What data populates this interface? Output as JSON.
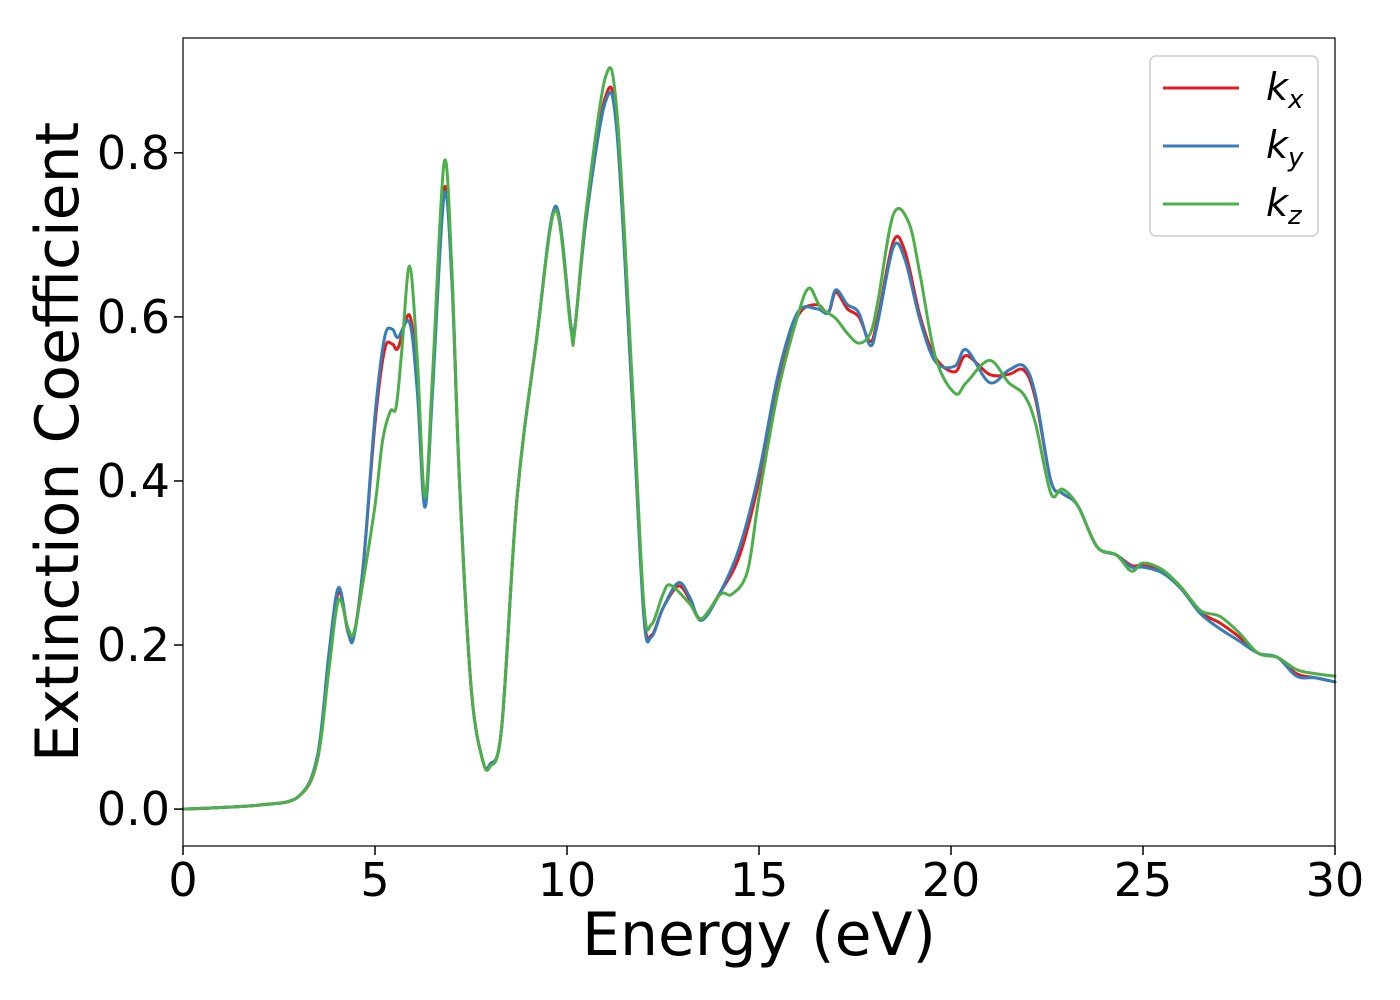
{
  "chart_data": {
    "type": "line",
    "xlabel": "Energy (eV)",
    "ylabel": "Extinction Coefficient",
    "xlim": [
      0,
      30
    ],
    "ylim": [
      -0.045,
      0.94
    ],
    "xticks": [
      0,
      5,
      10,
      15,
      20,
      25,
      30
    ],
    "xtick_labels": [
      "0",
      "5",
      "10",
      "15",
      "20",
      "25",
      "30"
    ],
    "yticks": [
      0.0,
      0.2,
      0.4,
      0.6,
      0.8
    ],
    "ytick_labels": [
      "0.0",
      "0.2",
      "0.4",
      "0.6",
      "0.8"
    ],
    "grid": false,
    "legend_position": "top-right",
    "series": [
      {
        "name": "k_x",
        "legend_base": "k",
        "legend_sub": "x",
        "color": "#e41a1c",
        "points": [
          [
            0,
            0
          ],
          [
            1,
            0.002
          ],
          [
            2,
            0.005
          ],
          [
            3,
            0.015
          ],
          [
            3.5,
            0.06
          ],
          [
            3.8,
            0.18
          ],
          [
            4.05,
            0.265
          ],
          [
            4.3,
            0.215
          ],
          [
            4.45,
            0.212
          ],
          [
            4.7,
            0.3
          ],
          [
            5,
            0.47
          ],
          [
            5.25,
            0.56
          ],
          [
            5.45,
            0.567
          ],
          [
            5.6,
            0.562
          ],
          [
            5.9,
            0.602
          ],
          [
            6.1,
            0.52
          ],
          [
            6.3,
            0.37
          ],
          [
            6.5,
            0.52
          ],
          [
            6.8,
            0.755
          ],
          [
            7,
            0.65
          ],
          [
            7.2,
            0.4
          ],
          [
            7.5,
            0.15
          ],
          [
            7.8,
            0.06
          ],
          [
            8,
            0.055
          ],
          [
            8.3,
            0.1
          ],
          [
            8.7,
            0.38
          ],
          [
            9.2,
            0.57
          ],
          [
            9.7,
            0.732
          ],
          [
            10.1,
            0.59
          ],
          [
            10.2,
            0.585
          ],
          [
            10.5,
            0.72
          ],
          [
            11,
            0.868
          ],
          [
            11.3,
            0.83
          ],
          [
            11.7,
            0.5
          ],
          [
            12,
            0.24
          ],
          [
            12.2,
            0.212
          ],
          [
            12.5,
            0.245
          ],
          [
            12.9,
            0.272
          ],
          [
            13.2,
            0.255
          ],
          [
            13.5,
            0.232
          ],
          [
            14,
            0.265
          ],
          [
            14.5,
            0.31
          ],
          [
            15,
            0.4
          ],
          [
            15.5,
            0.52
          ],
          [
            16,
            0.6
          ],
          [
            16.5,
            0.615
          ],
          [
            16.8,
            0.605
          ],
          [
            17,
            0.63
          ],
          [
            17.3,
            0.61
          ],
          [
            17.6,
            0.6
          ],
          [
            17.9,
            0.57
          ],
          [
            18.1,
            0.6
          ],
          [
            18.5,
            0.692
          ],
          [
            18.8,
            0.68
          ],
          [
            19.2,
            0.6
          ],
          [
            19.6,
            0.55
          ],
          [
            20.1,
            0.533
          ],
          [
            20.4,
            0.553
          ],
          [
            21,
            0.53
          ],
          [
            21.5,
            0.53
          ],
          [
            21.9,
            0.535
          ],
          [
            22.2,
            0.5
          ],
          [
            22.6,
            0.4
          ],
          [
            22.9,
            0.385
          ],
          [
            23.3,
            0.37
          ],
          [
            23.8,
            0.32
          ],
          [
            24.3,
            0.31
          ],
          [
            24.7,
            0.297
          ],
          [
            25,
            0.297
          ],
          [
            25.5,
            0.29
          ],
          [
            26,
            0.27
          ],
          [
            26.5,
            0.24
          ],
          [
            27,
            0.227
          ],
          [
            27.5,
            0.21
          ],
          [
            28,
            0.19
          ],
          [
            28.5,
            0.185
          ],
          [
            29,
            0.165
          ],
          [
            29.5,
            0.16
          ],
          [
            30,
            0.155
          ]
        ]
      },
      {
        "name": "k_y",
        "legend_base": "k",
        "legend_sub": "y",
        "color": "#377eb8",
        "points": [
          [
            0,
            0
          ],
          [
            1,
            0.002
          ],
          [
            2,
            0.005
          ],
          [
            3,
            0.015
          ],
          [
            3.5,
            0.065
          ],
          [
            3.8,
            0.19
          ],
          [
            4.05,
            0.27
          ],
          [
            4.3,
            0.215
          ],
          [
            4.45,
            0.21
          ],
          [
            4.7,
            0.3
          ],
          [
            5,
            0.48
          ],
          [
            5.25,
            0.575
          ],
          [
            5.45,
            0.585
          ],
          [
            5.6,
            0.575
          ],
          [
            5.9,
            0.593
          ],
          [
            6.1,
            0.51
          ],
          [
            6.3,
            0.368
          ],
          [
            6.5,
            0.51
          ],
          [
            6.8,
            0.748
          ],
          [
            7,
            0.645
          ],
          [
            7.2,
            0.4
          ],
          [
            7.5,
            0.15
          ],
          [
            7.8,
            0.06
          ],
          [
            8,
            0.055
          ],
          [
            8.3,
            0.1
          ],
          [
            8.7,
            0.38
          ],
          [
            9.2,
            0.57
          ],
          [
            9.7,
            0.735
          ],
          [
            10.1,
            0.59
          ],
          [
            10.2,
            0.585
          ],
          [
            10.5,
            0.72
          ],
          [
            11,
            0.862
          ],
          [
            11.3,
            0.825
          ],
          [
            11.7,
            0.5
          ],
          [
            12,
            0.235
          ],
          [
            12.2,
            0.21
          ],
          [
            12.5,
            0.245
          ],
          [
            12.9,
            0.276
          ],
          [
            13.2,
            0.258
          ],
          [
            13.5,
            0.23
          ],
          [
            14,
            0.265
          ],
          [
            14.5,
            0.32
          ],
          [
            15,
            0.41
          ],
          [
            15.5,
            0.53
          ],
          [
            16,
            0.605
          ],
          [
            16.5,
            0.61
          ],
          [
            16.8,
            0.605
          ],
          [
            17,
            0.633
          ],
          [
            17.3,
            0.615
          ],
          [
            17.6,
            0.605
          ],
          [
            17.9,
            0.565
          ],
          [
            18.1,
            0.595
          ],
          [
            18.5,
            0.685
          ],
          [
            18.8,
            0.67
          ],
          [
            19.2,
            0.595
          ],
          [
            19.6,
            0.545
          ],
          [
            20.1,
            0.54
          ],
          [
            20.4,
            0.56
          ],
          [
            21,
            0.52
          ],
          [
            21.5,
            0.535
          ],
          [
            21.9,
            0.54
          ],
          [
            22.2,
            0.505
          ],
          [
            22.6,
            0.4
          ],
          [
            22.9,
            0.385
          ],
          [
            23.3,
            0.37
          ],
          [
            23.8,
            0.32
          ],
          [
            24.3,
            0.31
          ],
          [
            24.7,
            0.295
          ],
          [
            25,
            0.295
          ],
          [
            25.5,
            0.288
          ],
          [
            26,
            0.268
          ],
          [
            26.5,
            0.238
          ],
          [
            27,
            0.22
          ],
          [
            27.5,
            0.205
          ],
          [
            28,
            0.19
          ],
          [
            28.5,
            0.185
          ],
          [
            29,
            0.162
          ],
          [
            29.5,
            0.16
          ],
          [
            30,
            0.155
          ]
        ]
      },
      {
        "name": "k_z",
        "legend_base": "k",
        "legend_sub": "z",
        "color": "#4daf4a",
        "points": [
          [
            0,
            0
          ],
          [
            1,
            0.002
          ],
          [
            2,
            0.005
          ],
          [
            3,
            0.015
          ],
          [
            3.5,
            0.06
          ],
          [
            3.8,
            0.17
          ],
          [
            4.05,
            0.255
          ],
          [
            4.3,
            0.22
          ],
          [
            4.45,
            0.215
          ],
          [
            4.7,
            0.28
          ],
          [
            5,
            0.37
          ],
          [
            5.2,
            0.45
          ],
          [
            5.4,
            0.485
          ],
          [
            5.55,
            0.49
          ],
          [
            5.7,
            0.56
          ],
          [
            5.9,
            0.662
          ],
          [
            6.1,
            0.55
          ],
          [
            6.3,
            0.38
          ],
          [
            6.5,
            0.53
          ],
          [
            6.8,
            0.788
          ],
          [
            7,
            0.66
          ],
          [
            7.2,
            0.4
          ],
          [
            7.5,
            0.15
          ],
          [
            7.8,
            0.06
          ],
          [
            8,
            0.052
          ],
          [
            8.3,
            0.1
          ],
          [
            8.7,
            0.38
          ],
          [
            9.2,
            0.57
          ],
          [
            9.7,
            0.73
          ],
          [
            10.1,
            0.585
          ],
          [
            10.2,
            0.582
          ],
          [
            10.5,
            0.73
          ],
          [
            11,
            0.892
          ],
          [
            11.3,
            0.85
          ],
          [
            11.7,
            0.52
          ],
          [
            12,
            0.25
          ],
          [
            12.2,
            0.225
          ],
          [
            12.5,
            0.262
          ],
          [
            12.7,
            0.273
          ],
          [
            13.2,
            0.25
          ],
          [
            13.5,
            0.232
          ],
          [
            14,
            0.262
          ],
          [
            14.3,
            0.262
          ],
          [
            14.7,
            0.29
          ],
          [
            15,
            0.38
          ],
          [
            15.5,
            0.51
          ],
          [
            16,
            0.6
          ],
          [
            16.3,
            0.635
          ],
          [
            16.6,
            0.612
          ],
          [
            17,
            0.598
          ],
          [
            17.3,
            0.58
          ],
          [
            17.6,
            0.568
          ],
          [
            17.9,
            0.58
          ],
          [
            18.1,
            0.62
          ],
          [
            18.5,
            0.725
          ],
          [
            18.9,
            0.715
          ],
          [
            19.2,
            0.65
          ],
          [
            19.6,
            0.55
          ],
          [
            20.1,
            0.507
          ],
          [
            20.4,
            0.52
          ],
          [
            21,
            0.547
          ],
          [
            21.5,
            0.52
          ],
          [
            21.9,
            0.505
          ],
          [
            22.2,
            0.47
          ],
          [
            22.6,
            0.385
          ],
          [
            22.9,
            0.39
          ],
          [
            23.3,
            0.37
          ],
          [
            23.8,
            0.32
          ],
          [
            24.3,
            0.31
          ],
          [
            24.7,
            0.29
          ],
          [
            25,
            0.3
          ],
          [
            25.5,
            0.292
          ],
          [
            26,
            0.27
          ],
          [
            26.5,
            0.242
          ],
          [
            27,
            0.235
          ],
          [
            27.5,
            0.215
          ],
          [
            28,
            0.19
          ],
          [
            28.5,
            0.185
          ],
          [
            29,
            0.17
          ],
          [
            29.5,
            0.165
          ],
          [
            30,
            0.162
          ]
        ]
      }
    ]
  }
}
